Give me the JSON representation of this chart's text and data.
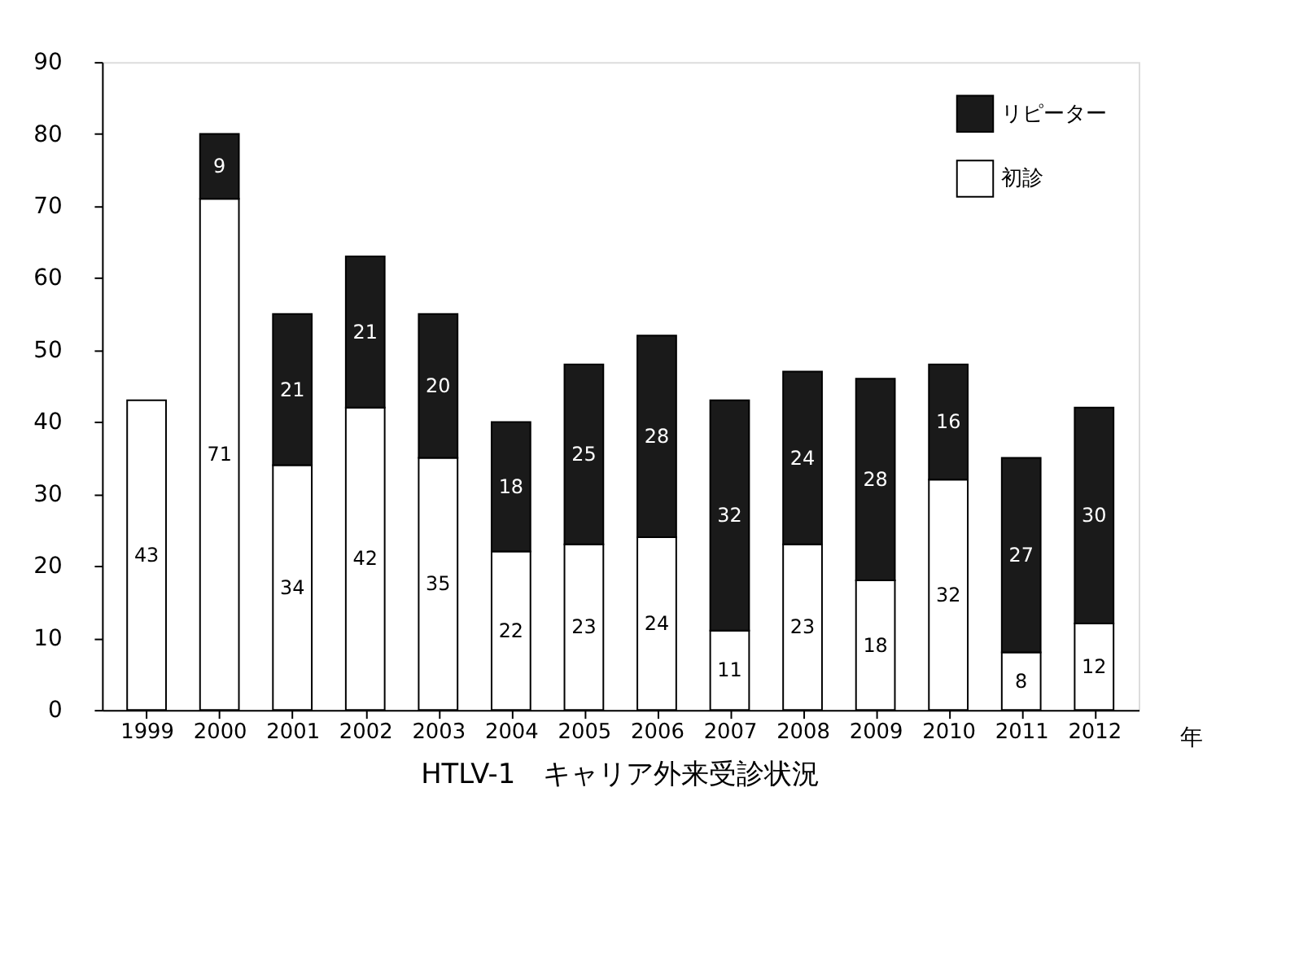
{
  "chart_data": {
    "type": "bar",
    "stacked": true,
    "title": "HTLV-1　キャリア外来受診状況",
    "xlabel": "年",
    "categories": [
      "1999",
      "2000",
      "2001",
      "2002",
      "2003",
      "2004",
      "2005",
      "2006",
      "2007",
      "2008",
      "2009",
      "2010",
      "2011",
      "2012"
    ],
    "series": [
      {
        "name": "初診",
        "color": "#ffffff",
        "values": [
          43,
          71,
          34,
          42,
          35,
          22,
          23,
          24,
          11,
          23,
          18,
          32,
          8,
          12
        ]
      },
      {
        "name": "リピーター",
        "color": "#1a1a1a",
        "values": [
          null,
          9,
          21,
          21,
          20,
          18,
          25,
          28,
          32,
          24,
          28,
          16,
          27,
          30
        ]
      }
    ],
    "ylim": [
      0,
      90
    ],
    "yticks": [
      0,
      10,
      20,
      30,
      40,
      50,
      60,
      70,
      80,
      90
    ],
    "grid": false,
    "legend": "top right",
    "data_labels": true
  }
}
